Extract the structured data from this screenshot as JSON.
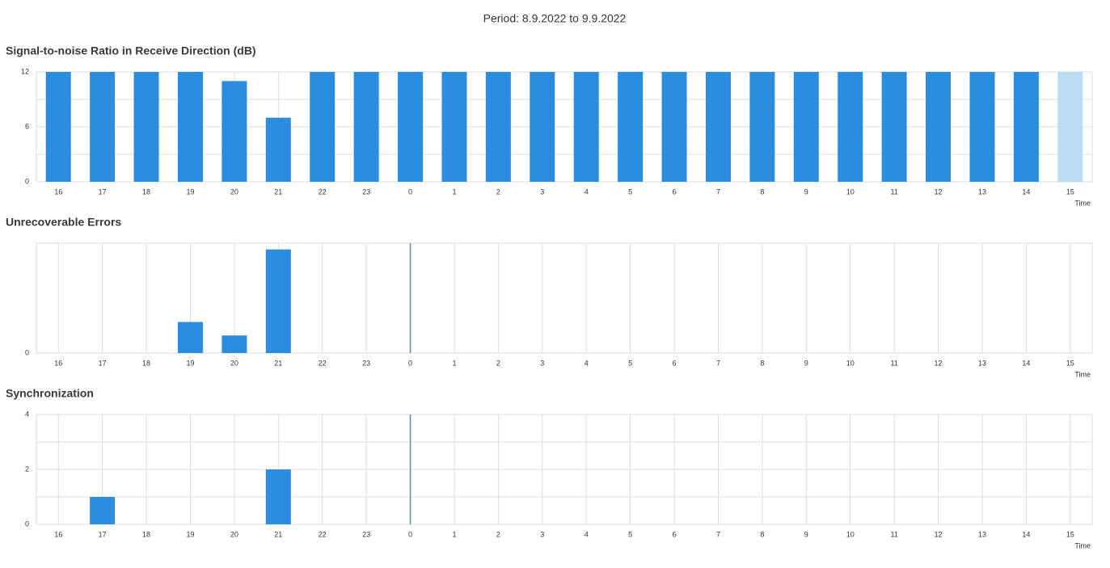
{
  "period": "Period: 8.9.2022 to 9.9.2022",
  "chart_data": [
    {
      "type": "bar",
      "title": "Signal-to-noise Ratio in Receive Direction (dB)",
      "categories": [
        "16",
        "17",
        "18",
        "19",
        "20",
        "21",
        "22",
        "23",
        "0",
        "1",
        "2",
        "3",
        "4",
        "5",
        "6",
        "7",
        "8",
        "9",
        "10",
        "11",
        "12",
        "13",
        "14",
        "15"
      ],
      "values": [
        12,
        12,
        12,
        12,
        11,
        7,
        12,
        12,
        12,
        12,
        12,
        12,
        12,
        12,
        12,
        12,
        12,
        12,
        12,
        12,
        12,
        12,
        12,
        12
      ],
      "color": "#2a8ddf",
      "colors": [
        "#2a8ddf",
        "#2a8ddf",
        "#2a8ddf",
        "#2a8ddf",
        "#2a8ddf",
        "#2a8ddf",
        "#2a8ddf",
        "#2a8ddf",
        "#2a8ddf",
        "#2a8ddf",
        "#2a8ddf",
        "#2a8ddf",
        "#2a8ddf",
        "#2a8ddf",
        "#2a8ddf",
        "#2a8ddf",
        "#2a8ddf",
        "#2a8ddf",
        "#2a8ddf",
        "#2a8ddf",
        "#2a8ddf",
        "#2a8ddf",
        "#2a8ddf",
        "#bcdcf1"
      ],
      "ylim": [
        0,
        12
      ],
      "yticks": [
        0,
        6,
        12
      ],
      "xlabel": "Time",
      "grid": true
    },
    {
      "type": "bar",
      "title": "Unrecoverable Errors",
      "categories": [
        "16",
        "17",
        "18",
        "19",
        "20",
        "21",
        "22",
        "23",
        "0",
        "1",
        "2",
        "3",
        "4",
        "5",
        "6",
        "7",
        "8",
        "9",
        "10",
        "11",
        "12",
        "13",
        "14",
        "15"
      ],
      "values": [
        0,
        0,
        0,
        30,
        17,
        100,
        0,
        0,
        0,
        0,
        0,
        0,
        0,
        0,
        0,
        0,
        0,
        0,
        0,
        0,
        0,
        0,
        0,
        0
      ],
      "color": "#2a8ddf",
      "ylim": [
        0,
        106
      ],
      "yticks": [
        0
      ],
      "xlabel": "Time",
      "grid": true
    },
    {
      "type": "bar",
      "title": "Synchronization",
      "categories": [
        "16",
        "17",
        "18",
        "19",
        "20",
        "21",
        "22",
        "23",
        "0",
        "1",
        "2",
        "3",
        "4",
        "5",
        "6",
        "7",
        "8",
        "9",
        "10",
        "11",
        "12",
        "13",
        "14",
        "15"
      ],
      "values": [
        0,
        1,
        0,
        0,
        0,
        2,
        0,
        0,
        0,
        0,
        0,
        0,
        0,
        0,
        0,
        0,
        0,
        0,
        0,
        0,
        0,
        0,
        0,
        0
      ],
      "color": "#2a8ddf",
      "ylim": [
        0,
        4
      ],
      "yticks": [
        0,
        2,
        4
      ],
      "xlabel": "Time",
      "grid": true
    }
  ]
}
